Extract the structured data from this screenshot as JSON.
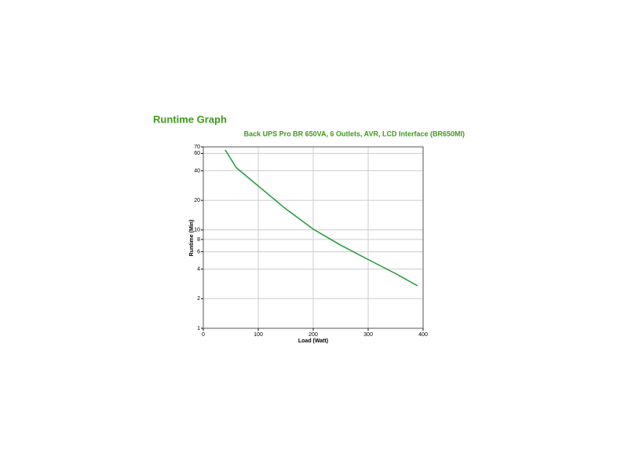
{
  "chart_data": {
    "type": "line",
    "title": "Runtime Graph",
    "subtitle": "Back UPS Pro BR 650VA, 6 Outlets, AVR, LCD Interface (BR650MI)",
    "x_label": "Load (Watt)",
    "y_label": "Runtime (Min)",
    "x": [
      40,
      60,
      100,
      150,
      200,
      250,
      300,
      350,
      390
    ],
    "series": [
      {
        "name": "Runtime",
        "color": "#1e9a3a",
        "values": [
          65,
          43,
          28,
          16.4,
          10.2,
          7.0,
          5.0,
          3.6,
          2.7
        ]
      }
    ],
    "xlim": [
      0,
      400
    ],
    "xticks": [
      0,
      100,
      200,
      300,
      400
    ],
    "ylim": [
      1,
      70
    ],
    "yticks": [
      1,
      2,
      4,
      6,
      8,
      10,
      20,
      40,
      60,
      70
    ],
    "yscale": "log",
    "grid": true,
    "title_color": "#3d9a1a"
  }
}
